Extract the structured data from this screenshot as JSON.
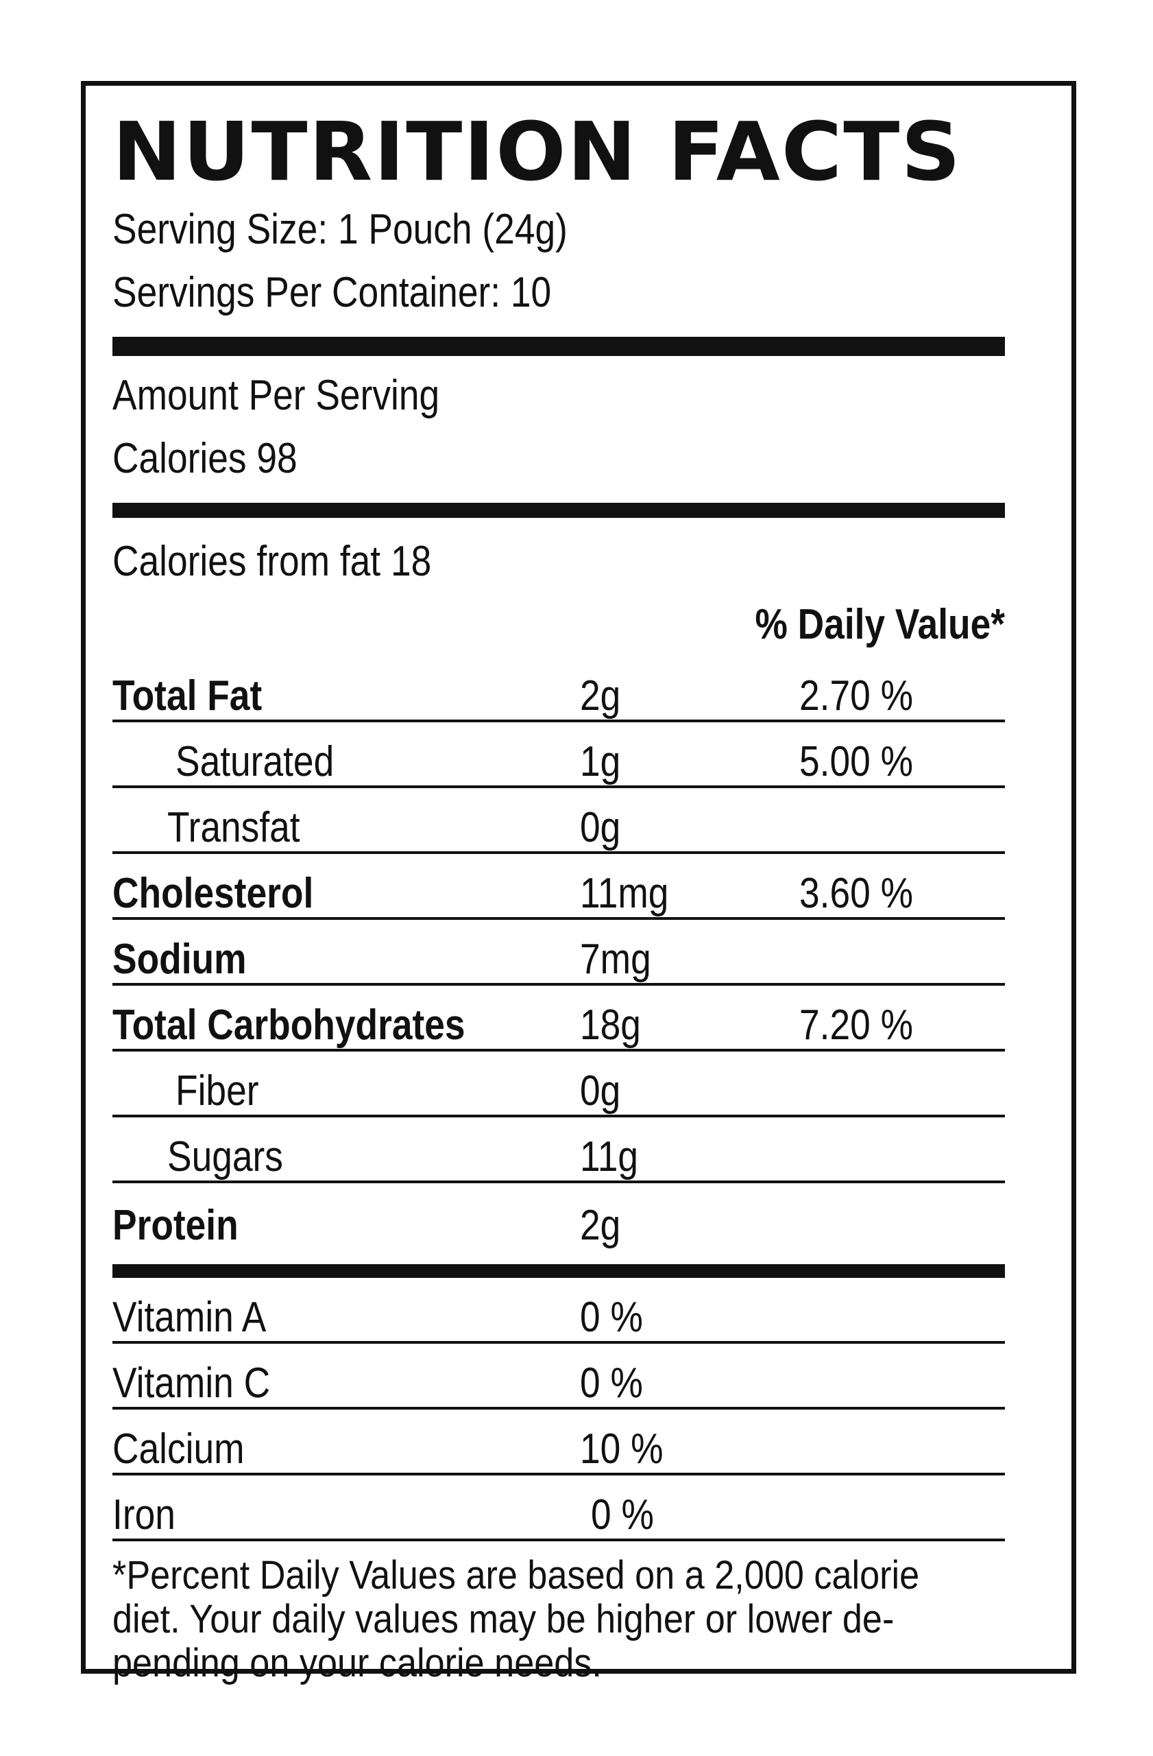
{
  "label": {
    "title": "NUTRITION FACTS",
    "serving_size": "Serving Size: 1 Pouch (24g)",
    "servings_per_container": "Servings Per Container: 10",
    "amount_per_serving": "Amount Per Serving",
    "calories": "Calories  98",
    "calories_from_fat": "Calories from fat 18",
    "daily_value_header": "% Daily Value*",
    "nutrients": [
      {
        "name": "Total Fat",
        "amount": "2g",
        "dv": "2.70 %"
      },
      {
        "name": "Saturated",
        "amount": "1g",
        "dv": "5.00 %"
      },
      {
        "name": "Transfat",
        "amount": "0g",
        "dv": ""
      },
      {
        "name": "Cholesterol",
        "amount": "11mg",
        "dv": "3.60 %"
      },
      {
        "name": "Sodium",
        "amount": "7mg",
        "dv": ""
      },
      {
        "name": "Total Carbohydrates",
        "amount": "18g",
        "dv": "7.20 %"
      },
      {
        "name": "Fiber",
        "amount": "0g",
        "dv": ""
      },
      {
        "name": "Sugars",
        "amount": "11g",
        "dv": ""
      },
      {
        "name": "Protein",
        "amount": "2g",
        "dv": ""
      }
    ],
    "vitamins": [
      {
        "name": "Vitamin A",
        "value": "0 %"
      },
      {
        "name": "Vitamin C",
        "value": "0 %"
      },
      {
        "name": "Calcium",
        "value": "10 %"
      },
      {
        "name": "Iron",
        "value": " 0 %"
      }
    ],
    "footnote": "*Percent Daily Values are based on a 2,000 calorie diet. Your daily values may be higher or lower de-pending on your calorie needs."
  }
}
